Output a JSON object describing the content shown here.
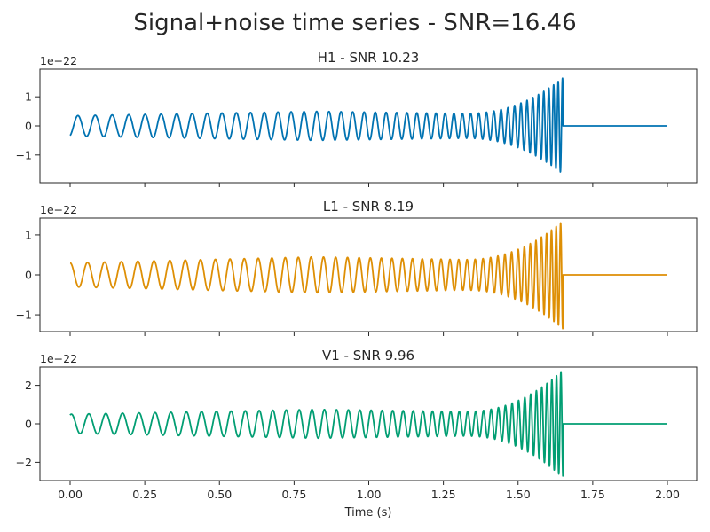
{
  "chart_data": {
    "type": "line",
    "suptitle": "Signal+noise time series - SNR=16.46",
    "xlabel": "Time (s)",
    "xlim": [
      0.0,
      2.0
    ],
    "xticks": [
      0.0,
      0.25,
      0.5,
      0.75,
      1.0,
      1.25,
      1.5,
      1.75,
      2.0
    ],
    "xtick_labels": [
      "0.00",
      "0.25",
      "0.50",
      "0.75",
      "1.00",
      "1.25",
      "1.50",
      "1.75",
      "2.00"
    ],
    "merger_time": 1.65,
    "panels": [
      {
        "name": "H1",
        "title": "H1 - SNR 10.23",
        "color": "#0173b2",
        "offset_label": "1e−22",
        "ylim": [
          -1.95,
          1.95
        ],
        "yticks": [
          -1,
          0,
          1
        ],
        "ytick_labels": [
          "−1",
          "0",
          "1"
        ],
        "series": {
          "start_amplitude": 0.35,
          "mid_amplitude": 0.5,
          "peak_amplitude": 1.65,
          "initial_value": -0.33
        }
      },
      {
        "name": "L1",
        "title": "L1 - SNR 8.19",
        "color": "#de8f05",
        "offset_label": "1e−22",
        "ylim": [
          -1.42,
          1.42
        ],
        "yticks": [
          -1,
          0,
          1
        ],
        "ytick_labels": [
          "−1",
          "0",
          "1"
        ],
        "series": {
          "start_amplitude": 0.3,
          "mid_amplitude": 0.45,
          "peak_amplitude": 1.35,
          "initial_value": 0.3
        }
      },
      {
        "name": "V1",
        "title": "V1 - SNR 9.96",
        "color": "#029e73",
        "offset_label": "1e−22",
        "ylim": [
          -2.95,
          2.95
        ],
        "yticks": [
          -2,
          0,
          2
        ],
        "ytick_labels": [
          "−2",
          "0",
          "2"
        ],
        "series": {
          "start_amplitude": 0.5,
          "mid_amplitude": 0.75,
          "peak_amplitude": 2.8,
          "initial_value": 0.45
        }
      }
    ]
  }
}
